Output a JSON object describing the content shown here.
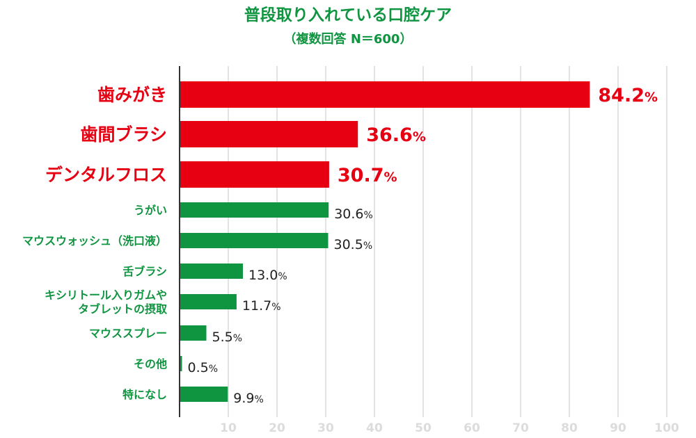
{
  "chart_data": {
    "type": "bar",
    "orientation": "horizontal",
    "title": "普段取り入れている口腔ケア",
    "subtitle": "（複数回答 N＝600）",
    "categories": [
      [
        "歯みがき"
      ],
      [
        "歯間ブラシ"
      ],
      [
        "デンタルフロス"
      ],
      [
        "うがい"
      ],
      [
        "マウスウォッシュ（洗口液）"
      ],
      [
        "舌ブラシ"
      ],
      [
        "キシリトール入りガムや",
        "タブレットの摂取"
      ],
      [
        "マウススプレー"
      ],
      [
        "その他"
      ],
      [
        "特になし"
      ]
    ],
    "values": [
      84.2,
      36.6,
      30.7,
      30.6,
      30.5,
      13.0,
      11.7,
      5.5,
      0.5,
      9.9
    ],
    "value_labels": [
      "84.2",
      "36.6",
      "30.7",
      "30.6",
      "30.5",
      "13.0",
      "11.7",
      "5.5",
      "0.5",
      "9.9"
    ],
    "unit": "%",
    "highlight_count": 3,
    "xlim": [
      0,
      100
    ],
    "xticks": [
      10,
      20,
      30,
      40,
      50,
      60,
      70,
      80,
      90,
      100
    ],
    "grid": true,
    "colors": {
      "highlight": "#e60012",
      "normal": "#0f9440",
      "title": "#0f9440",
      "grid": "#e3e3e3",
      "tick": "#dcdcdc",
      "value_text": "#222222",
      "axis": "#333333"
    }
  }
}
